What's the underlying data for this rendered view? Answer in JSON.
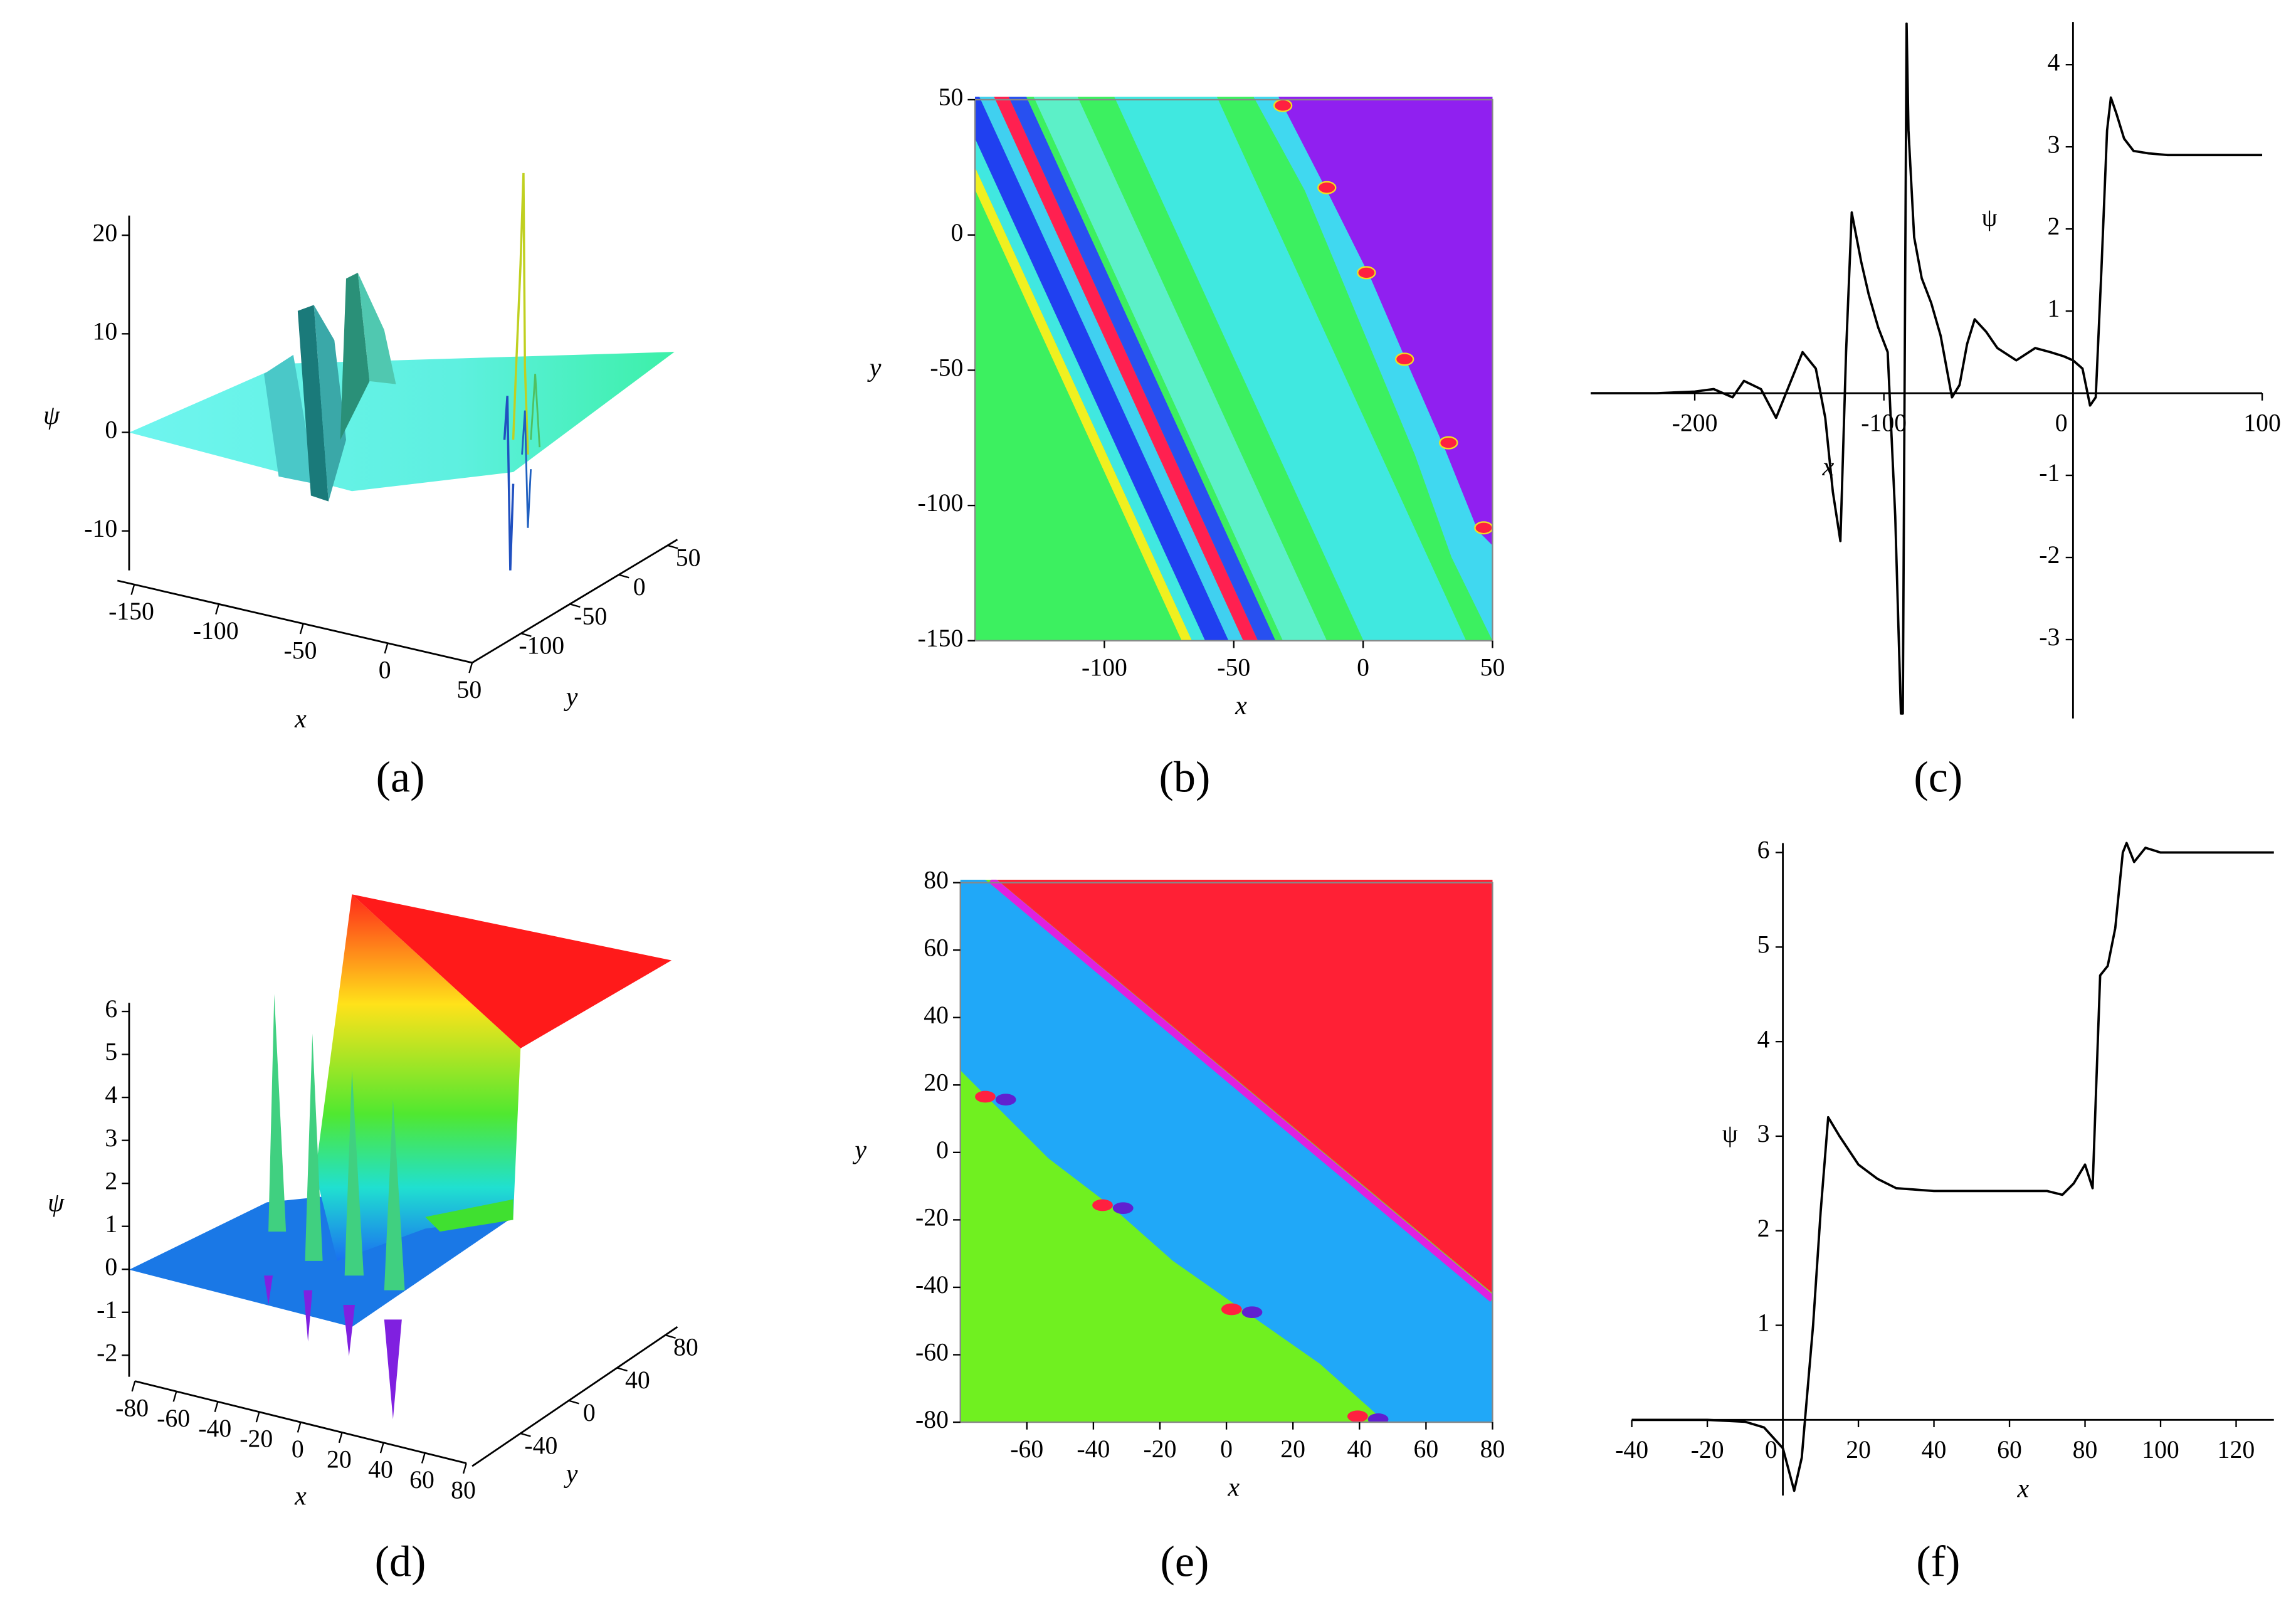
{
  "chart_data": [
    {
      "type": "surface3d",
      "label": "(a)",
      "xlabel": "x",
      "ylabel": "y",
      "zlabel": "ψ",
      "xlim": [
        -160,
        50
      ],
      "ylim": [
        -150,
        60
      ],
      "zlim": [
        -14,
        22
      ],
      "xticks": [
        -150,
        -100,
        -50,
        0,
        50
      ],
      "yticks": [
        -100,
        -50,
        0,
        50
      ],
      "zticks": [
        -10,
        0,
        10,
        20
      ]
    },
    {
      "type": "density",
      "label": "(b)",
      "xlabel": "x",
      "ylabel": "y",
      "xlim": [
        -150,
        50
      ],
      "ylim": [
        -150,
        50
      ],
      "xticks": [
        -100,
        -50,
        0,
        50
      ],
      "yticks": [
        -150,
        -100,
        -50,
        0,
        50
      ]
    },
    {
      "type": "line",
      "label": "(c)",
      "xlabel": "x",
      "ylabel": "ψ",
      "color": "#000000",
      "xlim": [
        -255,
        100
      ],
      "ylim": [
        -3.96,
        4.52
      ],
      "xticks": [
        -200,
        -100,
        0,
        100
      ],
      "yticks": [
        -3,
        -2,
        -1,
        1,
        2,
        3,
        4
      ],
      "x": [
        -255,
        -220,
        -200,
        -190,
        -180,
        -174,
        -165,
        -157,
        -150,
        -143,
        -136,
        -131,
        -127,
        -123,
        -120,
        -117,
        -112,
        -108,
        -103,
        -98,
        -94,
        -91,
        -90,
        -88,
        -87,
        -84,
        -80,
        -75,
        -70,
        -64,
        -60,
        -56,
        -52,
        -46,
        -40,
        -30,
        -20,
        -12,
        -5,
        0,
        5,
        9,
        12,
        15,
        18,
        20,
        23,
        27,
        32,
        40,
        50,
        70,
        100
      ],
      "values": [
        0,
        0,
        0.02,
        0.05,
        -0.05,
        0.15,
        0.05,
        -0.3,
        0.1,
        0.5,
        0.3,
        -0.3,
        -1.2,
        -1.8,
        0.5,
        2.2,
        1.6,
        1.2,
        0.8,
        0.5,
        -1.5,
        -3.9,
        -3.9,
        4.5,
        3.2,
        1.9,
        1.4,
        1.1,
        0.7,
        -0.05,
        0.1,
        0.6,
        0.9,
        0.75,
        0.55,
        0.4,
        0.55,
        0.5,
        0.45,
        0.4,
        0.3,
        -0.15,
        -0.05,
        1.5,
        3.2,
        3.6,
        3.4,
        3.1,
        2.95,
        2.92,
        2.9,
        2.9,
        2.9
      ]
    },
    {
      "type": "surface3d",
      "label": "(d)",
      "xlabel": "x",
      "ylabel": "y",
      "zlabel": "ψ",
      "xlim": [
        -80,
        80
      ],
      "ylim": [
        -80,
        90
      ],
      "zlim": [
        -2.5,
        6.2
      ],
      "xticks": [
        -80,
        -60,
        -40,
        -20,
        0,
        20,
        40,
        60,
        80
      ],
      "yticks": [
        -40,
        0,
        40,
        80
      ],
      "zticks": [
        -2,
        -1,
        0,
        1,
        2,
        3,
        4,
        5,
        6
      ]
    },
    {
      "type": "density",
      "label": "(e)",
      "xlabel": "x",
      "ylabel": "y",
      "xlim": [
        -80,
        80
      ],
      "ylim": [
        -80,
        80
      ],
      "xticks": [
        -60,
        -40,
        -20,
        0,
        20,
        40,
        60,
        80
      ],
      "yticks": [
        -80,
        -60,
        -40,
        -20,
        0,
        20,
        40,
        60,
        80
      ]
    },
    {
      "type": "line",
      "label": "(f)",
      "xlabel": "x",
      "ylabel": "ψ",
      "color": "#000000",
      "xlim": [
        -40,
        130
      ],
      "ylim": [
        -0.8,
        6.1
      ],
      "xticks": [
        -40,
        -20,
        0,
        20,
        40,
        60,
        80,
        100,
        120
      ],
      "yticks": [
        1,
        2,
        3,
        4,
        5,
        6
      ],
      "x": [
        -40,
        -20,
        -10,
        -5,
        0,
        3,
        5,
        8,
        10,
        12,
        15,
        20,
        25,
        30,
        40,
        70,
        74,
        77,
        80,
        82,
        84,
        86,
        88,
        90,
        91,
        93,
        96,
        100,
        130
      ],
      "values": [
        0,
        0,
        -0.02,
        -0.08,
        -0.3,
        -0.75,
        -0.4,
        1,
        2.2,
        3.2,
        3.0,
        2.7,
        2.55,
        2.45,
        2.42,
        2.42,
        2.38,
        2.5,
        2.7,
        2.45,
        4.7,
        4.8,
        5.2,
        6.0,
        6.1,
        5.9,
        6.05,
        6.0,
        6.0
      ]
    }
  ]
}
